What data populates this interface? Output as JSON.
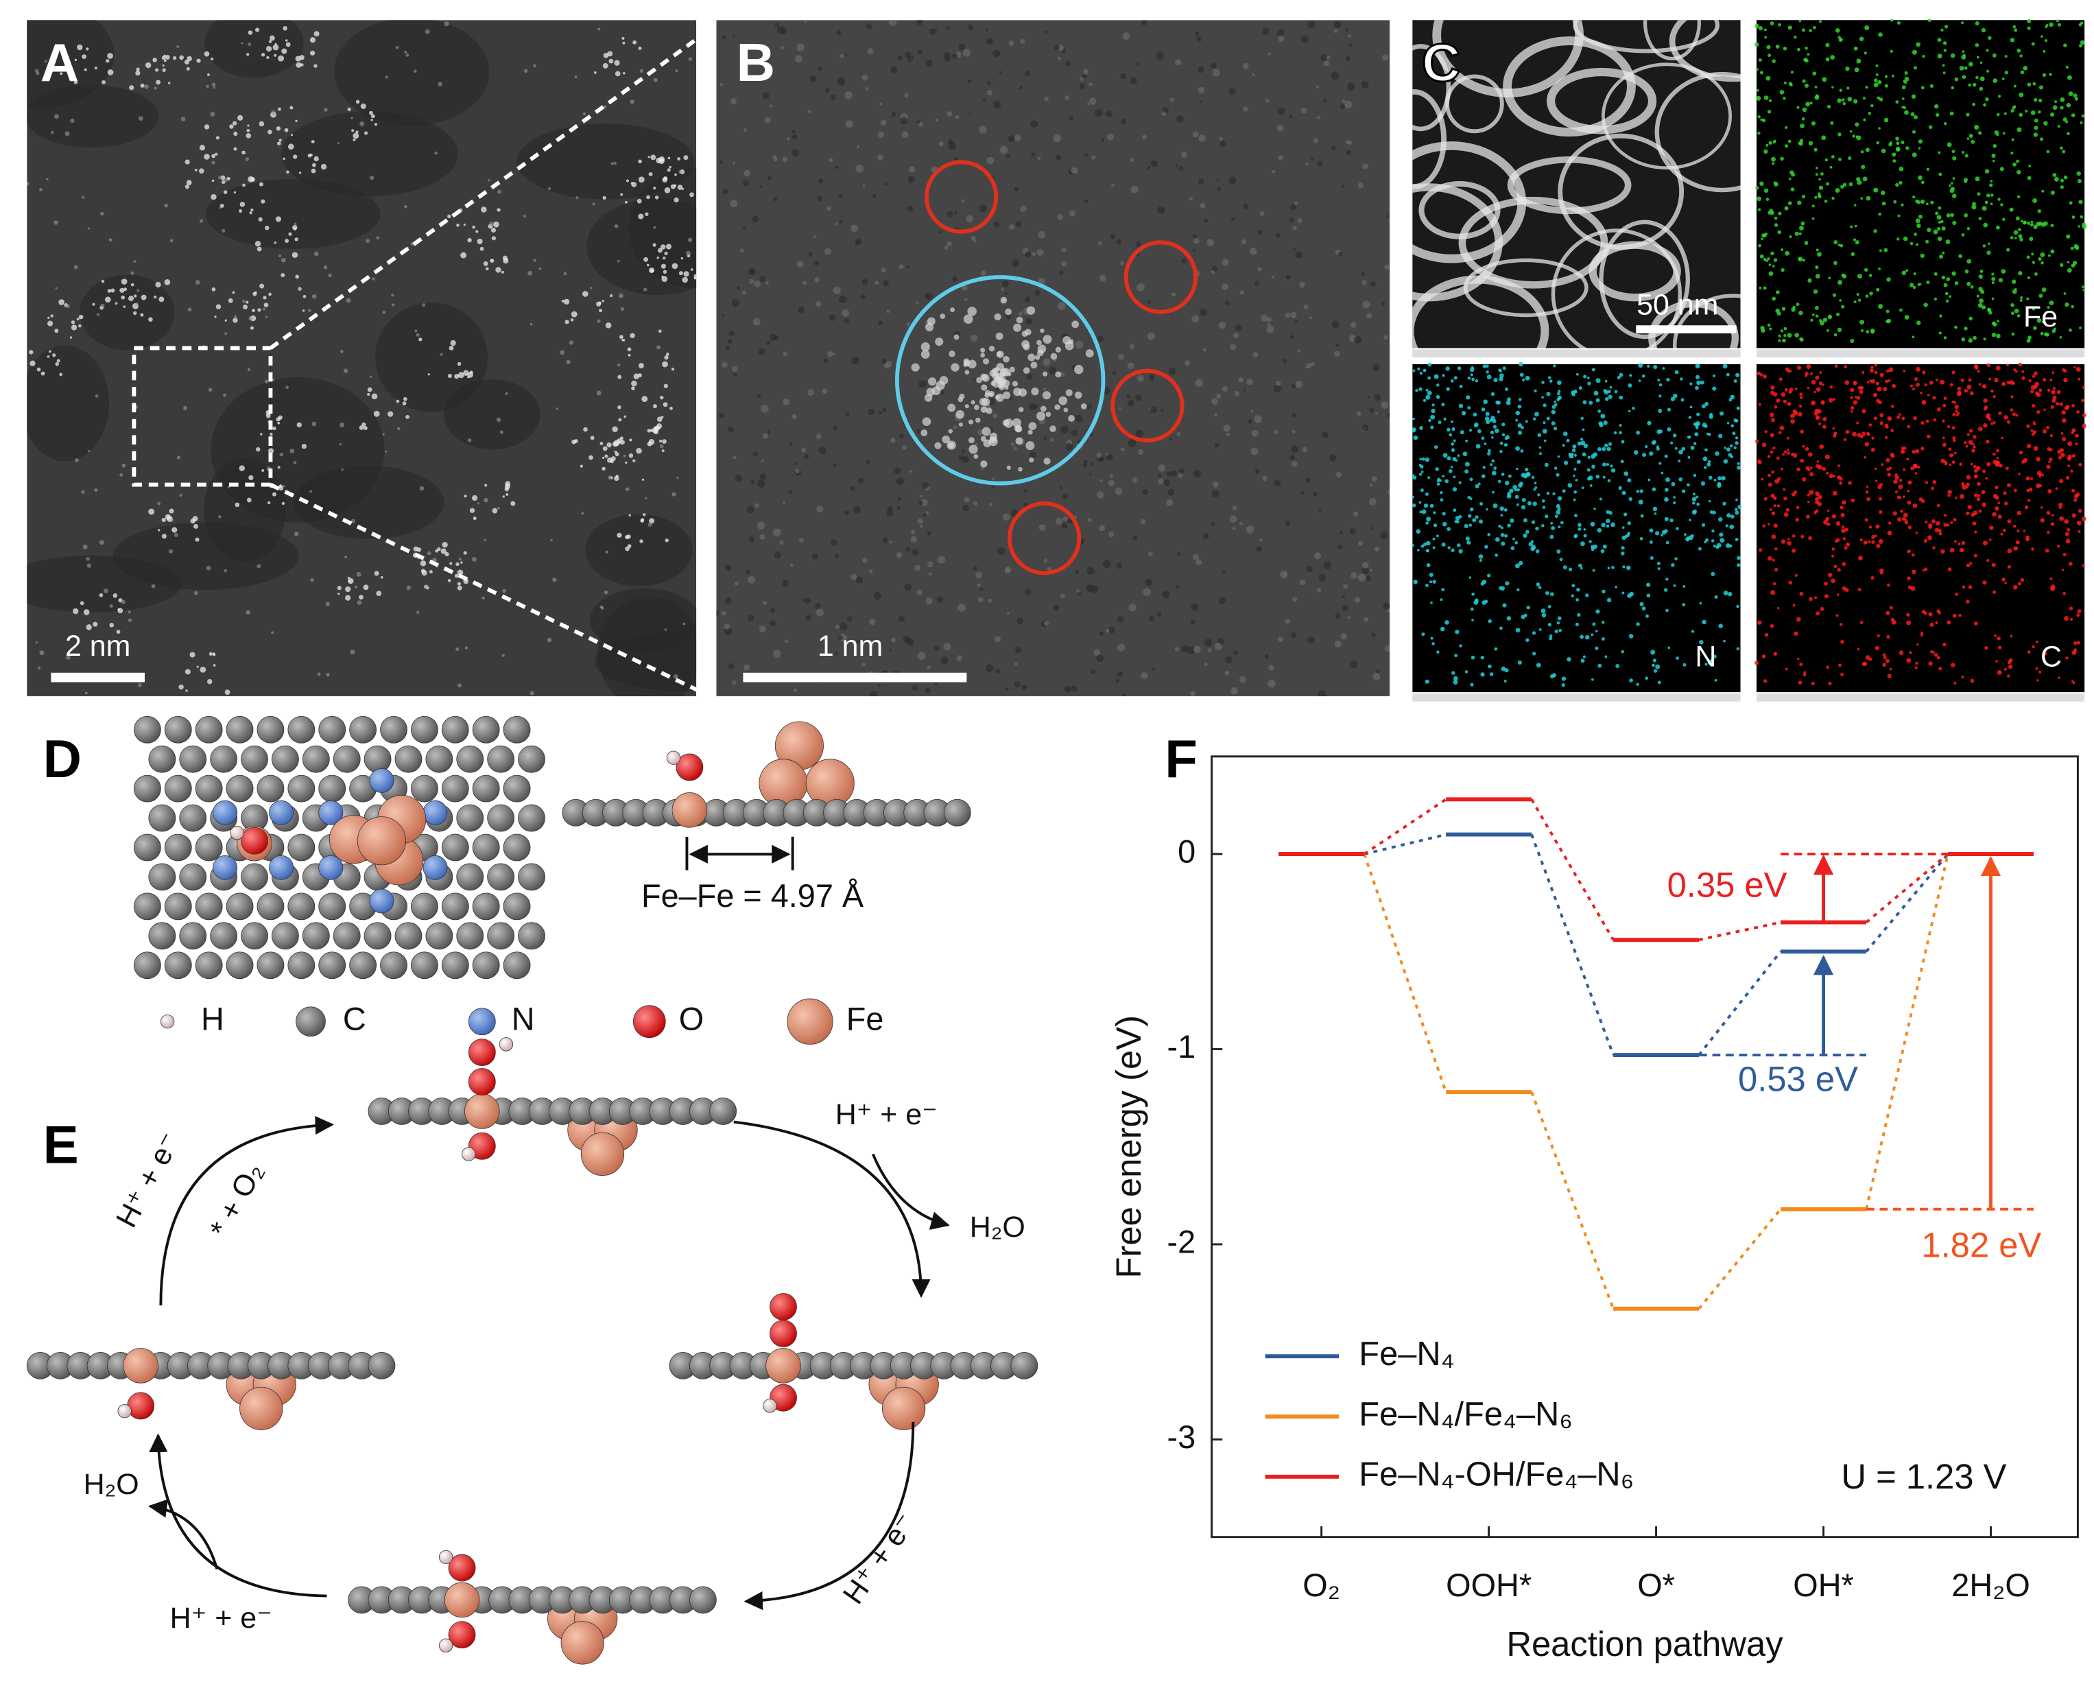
{
  "panels": {
    "A": {
      "label": "A",
      "scale_bar": "2 nm"
    },
    "B": {
      "label": "B",
      "scale_bar": "1 nm"
    },
    "C": {
      "label": "C",
      "scale_bar": "50 nm",
      "maps": [
        "Fe",
        "N",
        "C"
      ]
    },
    "D": {
      "label": "D",
      "distance": "Fe–Fe = 4.97 Å",
      "legend": [
        "H",
        "C",
        "N",
        "O",
        "Fe"
      ]
    },
    "E": {
      "label": "E",
      "top_left": {
        "reagent": "H⁺ + e⁻",
        "adsorbate": "* + O₂"
      },
      "top_right": {
        "reagent": "H⁺ + e⁻",
        "product": "H₂O"
      },
      "bottom_right": {
        "reagent": "H⁺ + e⁻"
      },
      "bottom_left": {
        "reagent": "H⁺ + e⁻",
        "product": "H₂O"
      }
    },
    "F": {
      "label": "F"
    }
  },
  "chart_data": {
    "type": "energy_levels",
    "x_label": "Reaction pathway",
    "y_label": "Free energy (eV)",
    "categories": [
      "O₂",
      "OOH*",
      "O*",
      "OH*",
      "2H₂O"
    ],
    "series": [
      {
        "name": "Fe–N₄",
        "color": "#2f5b99",
        "values": [
          0,
          0.1,
          -1.03,
          -0.5,
          0
        ]
      },
      {
        "name": "Fe–N₄/Fe₄–N₆",
        "color": "#f28a1e",
        "values": [
          0,
          -1.22,
          -2.33,
          -1.82,
          0
        ]
      },
      {
        "name": "Fe–N₄-OH/Fe₄–N₆",
        "color": "#e8201f",
        "values": [
          0,
          0.28,
          -0.44,
          -0.35,
          0
        ]
      }
    ],
    "annotations": [
      "0.35 eV",
      "0.53 eV",
      "1.82 eV",
      "U = 1.23 V"
    ],
    "ylim": [
      -3.5,
      0.5
    ],
    "yticks": [
      0,
      -1,
      -2,
      -3
    ],
    "legend": "lower left"
  }
}
